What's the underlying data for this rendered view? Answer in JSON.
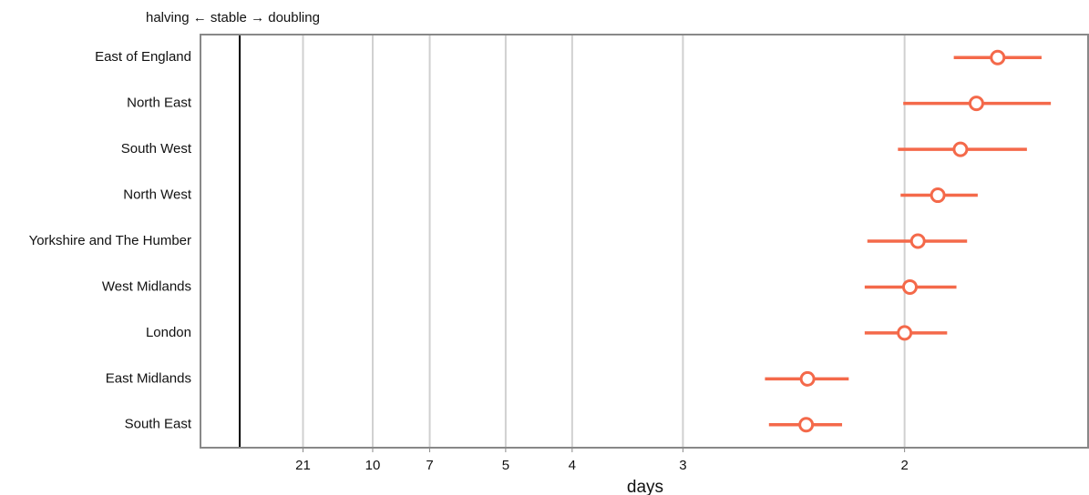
{
  "chart_data": {
    "type": "errorbar",
    "annotation": "halving ← stable → doubling",
    "x_label": "days",
    "categories": [
      "East of England",
      "North East",
      "South West",
      "North West",
      "Yorkshire and The Humber",
      "West Midlands",
      "London",
      "East Midlands",
      "South East"
    ],
    "series": [
      {
        "color": "#f4694a",
        "values": [
          0.57,
          0.554,
          0.542,
          0.525,
          0.51,
          0.504,
          0.5,
          0.427,
          0.426
        ],
        "lower": [
          0.537,
          0.499,
          0.495,
          0.497,
          0.472,
          0.47,
          0.47,
          0.395,
          0.398
        ],
        "upper": [
          0.603,
          0.61,
          0.592,
          0.555,
          0.547,
          0.539,
          0.532,
          0.458,
          0.453
        ]
      }
    ],
    "ref_line": 0,
    "xlim": [
      -0.0295,
      0.638
    ],
    "xticks": [
      {
        "value": 0.0476,
        "label": "21"
      },
      {
        "value": 0.1,
        "label": "10"
      },
      {
        "value": 0.1429,
        "label": "7"
      },
      {
        "value": 0.2,
        "label": "5"
      },
      {
        "value": 0.25,
        "label": "4"
      },
      {
        "value": 0.3333,
        "label": "3"
      },
      {
        "value": 0.5,
        "label": "2"
      }
    ],
    "grid": true
  }
}
